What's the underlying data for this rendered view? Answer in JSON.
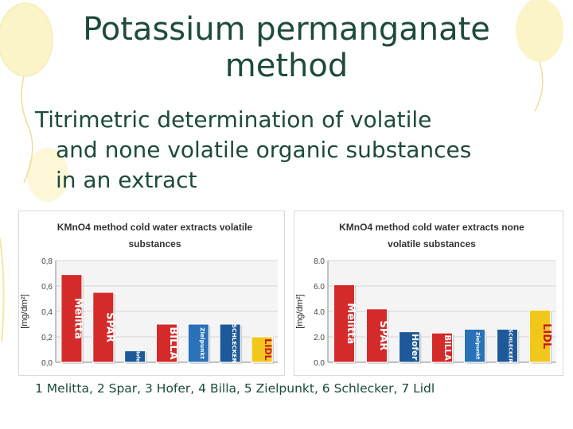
{
  "slide": {
    "title_line1": "Potassium permanganate",
    "title_line2": "method",
    "subtitle_line1": "Titrimetric determination of volatile",
    "subtitle_line2": "and none volatile organic substances",
    "subtitle_line3": "in an extract",
    "caption": "1 Melitta, 2 Spar, 3 Hofer, 4 Billa, 5 Zielpunkt, 6 Schlecker, 7 Lidl"
  },
  "chart_data": [
    {
      "type": "bar",
      "title_line1": "KMnO4 method cold water extracts volatile",
      "title_line2": "substances",
      "ylabel": "[mg/dm²]",
      "categories": [
        "Melitta",
        "Spar",
        "Hofer",
        "Billa",
        "Zielpunkt",
        "Schlecker",
        "Lidl"
      ],
      "brand_labels": [
        "Melitta",
        "SPAR",
        "Hofer",
        "BILLA",
        "Zielpunkt",
        "SCHLECKER",
        "LIDL"
      ],
      "values": [
        0.69,
        0.55,
        0.09,
        0.3,
        0.3,
        0.3,
        0.2
      ],
      "colors": [
        "#d42a2a",
        "#d42a2a",
        "#1e5a9a",
        "#d42a2a",
        "#2a72b8",
        "#1e5a9a",
        "#f2c71c"
      ],
      "yticks": [
        "0,0",
        "0,2",
        "0,4",
        "0,6",
        "0,8"
      ],
      "ylim": [
        0,
        0.8
      ]
    },
    {
      "type": "bar",
      "title_line1": "KMnO4 method cold water extracts none",
      "title_line2": "volatile substances",
      "ylabel": "[mg/dm²]",
      "categories": [
        "Melitta",
        "Spar",
        "Hofer",
        "Billa",
        "Zielpunkt",
        "Schlecker",
        "Lidl"
      ],
      "brand_labels": [
        "Melitta",
        "SPAR",
        "Hofer",
        "BILLA",
        "Zielpunkt",
        "SCHLECKER",
        "LIDL"
      ],
      "values": [
        6.1,
        4.2,
        2.4,
        2.3,
        2.6,
        2.6,
        4.1
      ],
      "colors": [
        "#d42a2a",
        "#d42a2a",
        "#1e5a9a",
        "#d42a2a",
        "#2a72b8",
        "#1e5a9a",
        "#f2c71c"
      ],
      "yticks": [
        "0.0",
        "2.0",
        "4.0",
        "6.0",
        "8.0"
      ],
      "ylim": [
        0,
        8
      ]
    }
  ]
}
